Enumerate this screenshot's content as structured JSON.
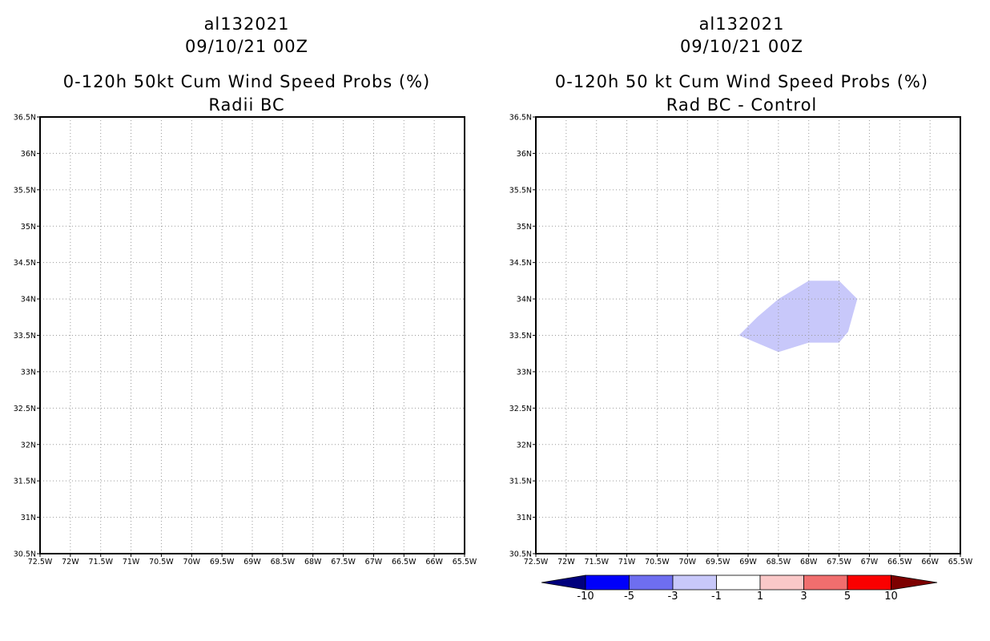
{
  "left_panel": {
    "storm_id": "al132021",
    "datetime": "09/10/21 00Z",
    "product": "0-120h 50kt Cum Wind Speed Probs (%)",
    "subtitle": "Radii BC"
  },
  "right_panel": {
    "storm_id": "al132021",
    "datetime": "09/10/21 00Z",
    "product": "0-120h 50 kt Cum Wind Speed Probs (%)",
    "subtitle": "Rad BC - Control"
  },
  "map_axes": {
    "lon_range": [
      -72.5,
      -65.5
    ],
    "lat_range": [
      30.5,
      36.5
    ],
    "lon_ticks": [
      {
        "value": -72.5,
        "label": "72.5W"
      },
      {
        "value": -72,
        "label": "72W"
      },
      {
        "value": -71.5,
        "label": "71.5W"
      },
      {
        "value": -71,
        "label": "71W"
      },
      {
        "value": -70.5,
        "label": "70.5W"
      },
      {
        "value": -70,
        "label": "70W"
      },
      {
        "value": -69.5,
        "label": "69.5W"
      },
      {
        "value": -69,
        "label": "69W"
      },
      {
        "value": -68.5,
        "label": "68.5W"
      },
      {
        "value": -68,
        "label": "68W"
      },
      {
        "value": -67.5,
        "label": "67.5W"
      },
      {
        "value": -67,
        "label": "67W"
      },
      {
        "value": -66.5,
        "label": "66.5W"
      },
      {
        "value": -66,
        "label": "66W"
      },
      {
        "value": -65.5,
        "label": "65.5W"
      }
    ],
    "lat_ticks": [
      {
        "value": 30.5,
        "label": "30.5N"
      },
      {
        "value": 31,
        "label": "31N"
      },
      {
        "value": 31.5,
        "label": "31.5N"
      },
      {
        "value": 32,
        "label": "32N"
      },
      {
        "value": 32.5,
        "label": "32.5N"
      },
      {
        "value": 33,
        "label": "33N"
      },
      {
        "value": 33.5,
        "label": "33.5N"
      },
      {
        "value": 34,
        "label": "34N"
      },
      {
        "value": 34.5,
        "label": "34.5N"
      },
      {
        "value": 35,
        "label": "35N"
      },
      {
        "value": 35.5,
        "label": "35.5N"
      },
      {
        "value": 36,
        "label": "36N"
      },
      {
        "value": 36.5,
        "label": "36.5N"
      }
    ],
    "grid": true
  },
  "difference_region": {
    "color": "#c8c8fa",
    "category": "-3 to -1",
    "polygon": [
      [
        -69.15,
        33.5
      ],
      [
        -68.85,
        33.75
      ],
      [
        -68.5,
        34.0
      ],
      [
        -68.0,
        34.25
      ],
      [
        -67.5,
        34.25
      ],
      [
        -67.2,
        34.0
      ],
      [
        -67.35,
        33.55
      ],
      [
        -67.5,
        33.4
      ],
      [
        -68.0,
        33.4
      ],
      [
        -68.5,
        33.27
      ]
    ]
  },
  "colorbar": {
    "colors": [
      "#0000fa",
      "#6e6ef0",
      "#c8c8fa",
      "#ffffff",
      "#fac8c8",
      "#f06e6e",
      "#fa0000"
    ],
    "under_color": "#00007d",
    "over_color": "#7d0000",
    "labels": [
      "-10",
      "-5",
      "-3",
      "-1",
      "1",
      "3",
      "5",
      "10"
    ]
  }
}
